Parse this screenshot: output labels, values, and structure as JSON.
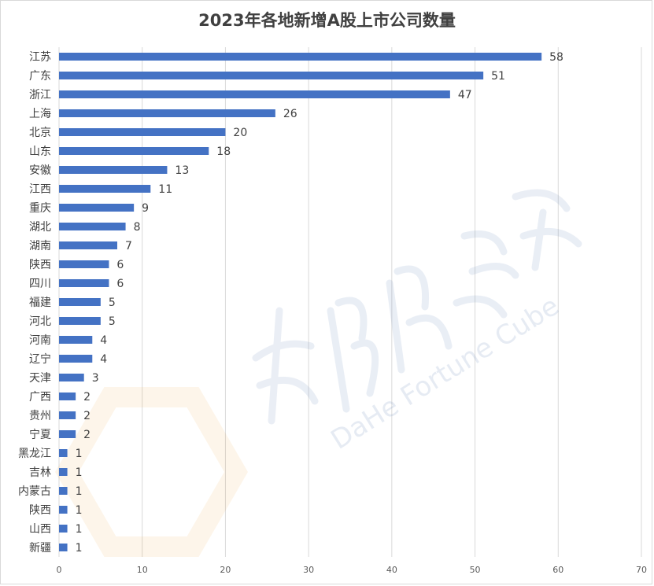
{
  "chart_data": {
    "type": "bar",
    "orientation": "horizontal",
    "title": "2023年各地新增A股上市公司数量",
    "categories": [
      "江苏",
      "广东",
      "浙江",
      "上海",
      "北京",
      "山东",
      "安徽",
      "江西",
      "重庆",
      "湖北",
      "湖南",
      "陕西",
      "四川",
      "福建",
      "河北",
      "河南",
      "辽宁",
      "天津",
      "广西",
      "贵州",
      "宁夏",
      "黑龙江",
      "吉林",
      "内蒙古",
      "陕西",
      "山西",
      "新疆"
    ],
    "values": [
      58,
      51,
      47,
      26,
      20,
      18,
      13,
      11,
      9,
      8,
      7,
      6,
      6,
      5,
      5,
      4,
      4,
      3,
      2,
      2,
      2,
      1,
      1,
      1,
      1,
      1,
      1
    ],
    "xlim": [
      0,
      70
    ],
    "xticks": [
      0,
      10,
      20,
      30,
      40,
      50,
      60,
      70
    ],
    "grid": true,
    "bar_color": "#4472c4",
    "data_labels": true
  },
  "watermark": {
    "text": "DaHe Fortune Cube",
    "logo_text": "大河财立方"
  }
}
